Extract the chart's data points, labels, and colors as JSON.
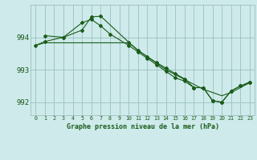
{
  "background_color": "#ceeaea",
  "grid_color": "#9bbfbf",
  "line_color": "#1a5c1a",
  "marker_color": "#1a5c1a",
  "title": "Graphe pression niveau de la mer (hPa)",
  "ylabel_ticks": [
    992,
    993,
    994
  ],
  "xlim": [
    -0.5,
    23.5
  ],
  "ylim": [
    991.6,
    995.0
  ],
  "line1_x": [
    0,
    1,
    2,
    3,
    4,
    5,
    6,
    7,
    8,
    9,
    10,
    11,
    12,
    13,
    14,
    15,
    16,
    17,
    18,
    19,
    20,
    21,
    22,
    23
  ],
  "line1_y": [
    993.75,
    993.83,
    993.83,
    993.83,
    993.83,
    993.83,
    993.83,
    993.83,
    993.83,
    993.83,
    993.83,
    993.6,
    993.4,
    993.2,
    993.0,
    992.85,
    992.7,
    992.55,
    992.4,
    992.3,
    992.2,
    992.3,
    992.45,
    992.6
  ],
  "line2_x": [
    1,
    3,
    5,
    6,
    7,
    8,
    10,
    11,
    12,
    13,
    14,
    15,
    16,
    17,
    18,
    19,
    20,
    21,
    22,
    23
  ],
  "line2_y": [
    994.05,
    994.0,
    994.45,
    994.55,
    994.35,
    994.1,
    993.75,
    993.55,
    993.35,
    993.15,
    992.95,
    992.75,
    992.65,
    992.45,
    992.45,
    992.05,
    992.0,
    992.35,
    992.5,
    992.62
  ],
  "line3_x": [
    0,
    1,
    3,
    5,
    6,
    7,
    10,
    11,
    12,
    13,
    14,
    15,
    16,
    17,
    18,
    19,
    20,
    21,
    22,
    23
  ],
  "line3_y": [
    993.75,
    993.87,
    994.0,
    994.22,
    994.63,
    994.65,
    993.85,
    993.6,
    993.4,
    993.22,
    993.05,
    992.88,
    992.72,
    992.45,
    992.45,
    992.05,
    992.0,
    992.35,
    992.5,
    992.62
  ]
}
